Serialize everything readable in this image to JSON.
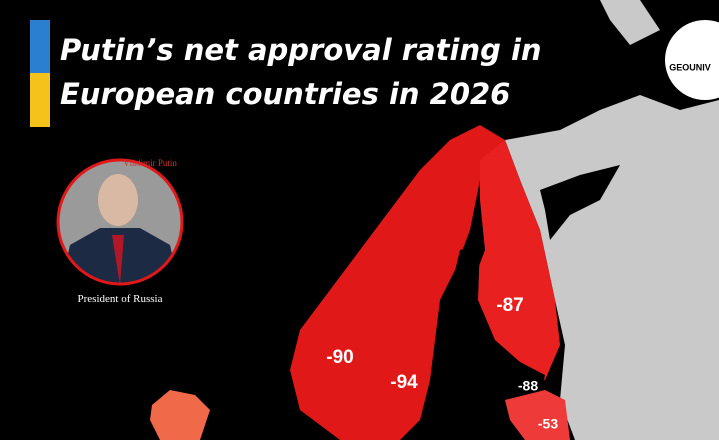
{
  "title": {
    "line1": "Putin’s net approval rating in",
    "line2": "European countries in 2026"
  },
  "portrait": {
    "name": "Vladimir Putin",
    "caption": "President of Russia"
  },
  "watermark": "GEOUNIV",
  "regions": [
    {
      "value": -87
    },
    {
      "value": -90
    },
    {
      "value": -94
    },
    {
      "value": -88
    },
    {
      "value": -53
    }
  ]
}
